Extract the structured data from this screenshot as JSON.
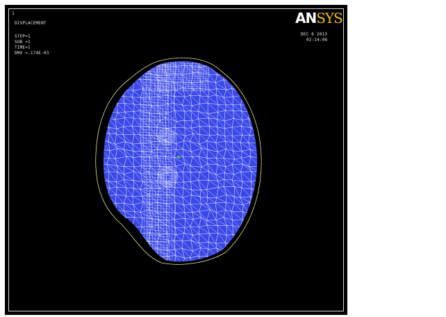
{
  "window_number": "1",
  "plot_title": "DISPLACEMENT",
  "solution": {
    "step": "STEP=1",
    "sub": "SUB =1",
    "time": "TIME=1",
    "dmx": "DMX =.174E-03"
  },
  "logo": {
    "part1": "AN",
    "part2": "SYS"
  },
  "timestamp": {
    "date": "DEC  6 2013",
    "time": "02:14:06"
  },
  "colors": {
    "background": "#000000",
    "mesh_fill": "#3a48e8",
    "mesh_lines": "#ffffff",
    "undeformed_outline": "#e8e890",
    "logo_accent": "#f2c200",
    "node_highlight": "#39d13a"
  }
}
